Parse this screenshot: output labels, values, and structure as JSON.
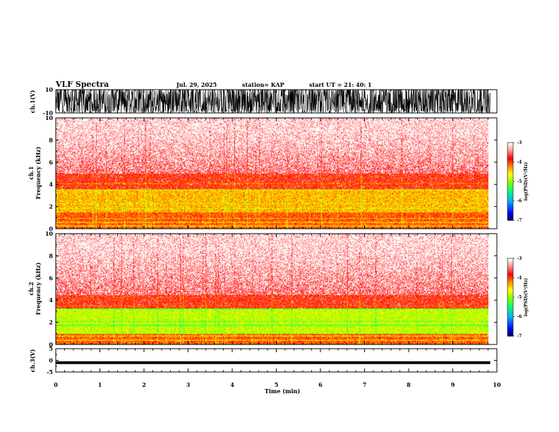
{
  "header": {
    "title": "VLF Spectra",
    "date": "Jul. 29, 2025",
    "station": "station= KAP",
    "start": "start UT =  21: 40: 1"
  },
  "chart_data": [
    {
      "type": "line",
      "name": "ch1-waveform",
      "ylabel": "ch.1(V)",
      "ylim": [
        -10,
        10
      ],
      "yticks": [
        10,
        -10
      ],
      "x_range_min": [
        0,
        9.85
      ],
      "note": "dense black noise waveform saturating most of the +/-10 V range"
    },
    {
      "type": "heatmap",
      "name": "ch1-spectrogram",
      "ylabel": "ch.1\nFrequency (kHz)",
      "ylim": [
        0,
        10
      ],
      "yticks": [
        0,
        2,
        4,
        6,
        8,
        10
      ],
      "colorbar": {
        "label": "log(PSD)(V²/Hz)",
        "range": [
          -7,
          -3
        ],
        "ticks": [
          -3,
          -4,
          -5,
          -6,
          -7
        ],
        "colors": [
          "#000080",
          "#0000ff",
          "#00a0ff",
          "#00ff80",
          "#80ff00",
          "#ffff00",
          "#ff8000",
          "#ff0000",
          "#ffc8c8",
          "#ffffff"
        ]
      },
      "bands_khz": [
        {
          "from": 0,
          "to": 1.5,
          "level": "red/orange"
        },
        {
          "from": 1.5,
          "to": 3.5,
          "level": "yellow/orange"
        },
        {
          "from": 3.5,
          "to": 5,
          "level": "red"
        },
        {
          "from": 5,
          "to": 10,
          "level": "light pink, fading to white"
        }
      ]
    },
    {
      "type": "heatmap",
      "name": "ch2-spectrogram",
      "ylabel": "ch.2\nFrequency (kHz)",
      "ylim": [
        0,
        10
      ],
      "yticks": [
        0,
        2,
        4,
        6,
        8,
        10
      ],
      "colorbar": {
        "label": "log(PSD)(V²/Hz)",
        "range": [
          -7,
          -3
        ],
        "ticks": [
          -3,
          -4,
          -5,
          -6,
          -7
        ]
      },
      "bands_khz": [
        {
          "from": 0,
          "to": 1,
          "level": "red/orange"
        },
        {
          "from": 1,
          "to": 3.3,
          "level": "yellow/green"
        },
        {
          "from": 3.3,
          "to": 4.5,
          "level": "red"
        },
        {
          "from": 4.5,
          "to": 10,
          "level": "light pink, fading to white"
        }
      ]
    },
    {
      "type": "line",
      "name": "ch3-waveform",
      "ylabel": "ch.3(V)",
      "ylim": [
        -5,
        5
      ],
      "yticks": [
        5,
        0,
        -5
      ],
      "level_v": [
        -1.6,
        -0.4
      ],
      "note": "flat black band slightly below 0 V"
    }
  ],
  "xaxis": {
    "label": "Time (min)",
    "ticks": [
      0,
      1,
      2,
      3,
      4,
      5,
      6,
      7,
      8,
      9,
      10
    ],
    "xlim": [
      0,
      10
    ],
    "data_end_min": 9.85
  }
}
